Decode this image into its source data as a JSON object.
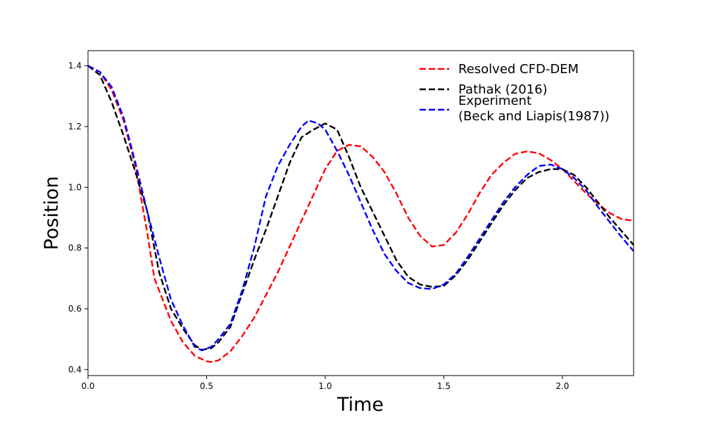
{
  "chart_data": {
    "type": "line",
    "title": "",
    "xlabel": "Time",
    "ylabel": "Position",
    "xlim": [
      0,
      2.3
    ],
    "ylim": [
      0.38,
      1.45
    ],
    "xticks": [
      0.0,
      0.5,
      1.0,
      1.5,
      2.0
    ],
    "xtick_labels": [
      "0.0",
      "0.5",
      "1.0",
      "1.5",
      "2.0"
    ],
    "yticks": [
      0.4,
      0.6,
      0.8,
      1.0,
      1.2,
      1.4
    ],
    "ytick_labels": [
      "0.4",
      "0.6",
      "0.8",
      "1.0",
      "1.2",
      "1.4"
    ],
    "grid": false,
    "legend_position": "top-right",
    "series": [
      {
        "name": "Resolved CFD-DEM",
        "color": "#ff0000",
        "style": "dashed",
        "x": [
          0,
          0.05,
          0.1,
          0.15,
          0.2,
          0.25,
          0.28,
          0.35,
          0.4,
          0.45,
          0.5,
          0.52,
          0.55,
          0.6,
          0.65,
          0.7,
          0.8,
          0.9,
          1.0,
          1.05,
          1.1,
          1.15,
          1.2,
          1.25,
          1.3,
          1.35,
          1.4,
          1.45,
          1.5,
          1.55,
          1.6,
          1.65,
          1.7,
          1.75,
          1.8,
          1.85,
          1.9,
          1.95,
          2.0,
          2.05,
          2.1,
          2.15,
          2.2,
          2.25,
          2.3
        ],
        "y": [
          1.4,
          1.38,
          1.32,
          1.22,
          1.07,
          0.85,
          0.7,
          0.56,
          0.49,
          0.445,
          0.427,
          0.425,
          0.43,
          0.46,
          0.51,
          0.57,
          0.72,
          0.89,
          1.06,
          1.12,
          1.14,
          1.135,
          1.1,
          1.05,
          0.98,
          0.9,
          0.84,
          0.805,
          0.81,
          0.85,
          0.91,
          0.98,
          1.04,
          1.08,
          1.11,
          1.118,
          1.112,
          1.09,
          1.06,
          1.02,
          0.98,
          0.945,
          0.915,
          0.895,
          0.89
        ]
      },
      {
        "name": "Pathak (2016)",
        "color": "#000000",
        "style": "dashed",
        "x": [
          0,
          0.05,
          0.1,
          0.15,
          0.2,
          0.25,
          0.3,
          0.35,
          0.4,
          0.45,
          0.48,
          0.52,
          0.55,
          0.6,
          0.65,
          0.7,
          0.75,
          0.8,
          0.85,
          0.9,
          0.95,
          1.0,
          1.05,
          1.1,
          1.15,
          1.2,
          1.25,
          1.3,
          1.35,
          1.4,
          1.45,
          1.5,
          1.55,
          1.6,
          1.65,
          1.7,
          1.75,
          1.8,
          1.85,
          1.9,
          1.95,
          2.0,
          2.05,
          2.1,
          2.15,
          2.2,
          2.25,
          2.3
        ],
        "y": [
          1.4,
          1.37,
          1.28,
          1.17,
          1.05,
          0.92,
          0.72,
          0.6,
          0.535,
          0.48,
          0.465,
          0.47,
          0.49,
          0.54,
          0.65,
          0.76,
          0.86,
          0.97,
          1.08,
          1.165,
          1.19,
          1.21,
          1.19,
          1.1,
          1.0,
          0.92,
          0.84,
          0.76,
          0.705,
          0.68,
          0.672,
          0.675,
          0.71,
          0.76,
          0.82,
          0.88,
          0.94,
          0.99,
          1.03,
          1.05,
          1.06,
          1.06,
          1.04,
          1.0,
          0.95,
          0.9,
          0.855,
          0.81
        ]
      },
      {
        "name": "Experiment\n(Beck and Liapis(1987))",
        "color": "#0000ff",
        "style": "dashed",
        "x": [
          0,
          0.05,
          0.1,
          0.15,
          0.2,
          0.25,
          0.3,
          0.35,
          0.4,
          0.45,
          0.48,
          0.52,
          0.55,
          0.6,
          0.65,
          0.7,
          0.75,
          0.8,
          0.85,
          0.9,
          0.93,
          0.97,
          1.0,
          1.05,
          1.1,
          1.15,
          1.2,
          1.25,
          1.3,
          1.35,
          1.4,
          1.45,
          1.5,
          1.55,
          1.6,
          1.65,
          1.7,
          1.75,
          1.8,
          1.85,
          1.9,
          1.95,
          2.0,
          2.05,
          2.1,
          2.15,
          2.2,
          2.25,
          2.3
        ],
        "y": [
          1.4,
          1.38,
          1.33,
          1.23,
          1.08,
          0.92,
          0.77,
          0.63,
          0.545,
          0.475,
          0.463,
          0.475,
          0.5,
          0.55,
          0.66,
          0.8,
          0.97,
          1.07,
          1.14,
          1.2,
          1.22,
          1.21,
          1.19,
          1.12,
          1.04,
          0.95,
          0.86,
          0.78,
          0.725,
          0.685,
          0.668,
          0.665,
          0.68,
          0.715,
          0.77,
          0.83,
          0.89,
          0.95,
          1.0,
          1.04,
          1.07,
          1.075,
          1.06,
          1.03,
          0.99,
          0.935,
          0.885,
          0.835,
          0.79
        ]
      }
    ]
  }
}
